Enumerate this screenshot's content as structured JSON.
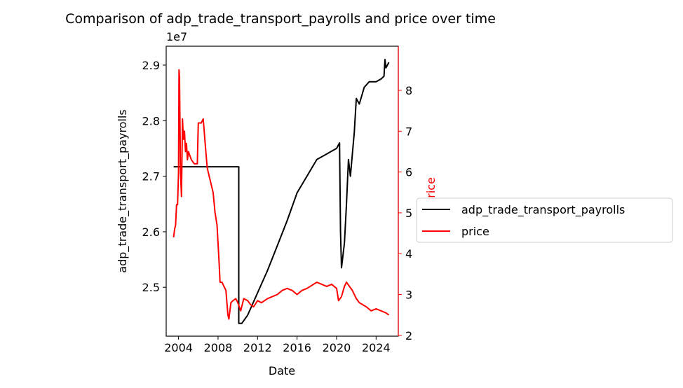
{
  "chart_data": {
    "type": "line",
    "title": "Comparison of adp_trade_transport_payrolls and price over time",
    "xlabel": "Date",
    "ylabel_left": "adp_trade_transport_payrolls",
    "ylabel_right": "price",
    "left_offset_label": "1e7",
    "xlim": [
      2002.75,
      2026.25
    ],
    "ylim_left": [
      2.412,
      2.934
    ],
    "ylim_right": [
      1.98,
      9.08
    ],
    "x_ticks": [
      2004,
      2008,
      2012,
      2016,
      2020,
      2024
    ],
    "x_tick_labels": [
      "2004",
      "2008",
      "2012",
      "2016",
      "2020",
      "2024"
    ],
    "y_left_ticks": [
      2.5,
      2.6,
      2.7,
      2.8,
      2.9
    ],
    "y_left_tick_labels": [
      "2.5",
      "2.6",
      "2.7",
      "2.8",
      "2.9"
    ],
    "y_right_ticks": [
      2,
      3,
      4,
      5,
      6,
      7,
      8
    ],
    "y_right_tick_labels": [
      "2",
      "3",
      "4",
      "5",
      "6",
      "7",
      "8"
    ],
    "legend": {
      "placement": "center-right outside",
      "entries": [
        "adp_trade_transport_payrolls",
        "price"
      ]
    },
    "series": [
      {
        "name": "adp_trade_transport_payrolls",
        "axis": "left",
        "unit_scale": "1e7",
        "color": "#000000",
        "points": [
          [
            2003.5,
            2.717
          ],
          [
            2010.1,
            2.717
          ],
          [
            2010.1,
            2.435
          ],
          [
            2010.4,
            2.435
          ],
          [
            2011.0,
            2.45
          ],
          [
            2012.0,
            2.49
          ],
          [
            2013.0,
            2.53
          ],
          [
            2014.0,
            2.575
          ],
          [
            2015.0,
            2.62
          ],
          [
            2016.0,
            2.67
          ],
          [
            2017.0,
            2.7
          ],
          [
            2018.0,
            2.73
          ],
          [
            2019.0,
            2.74
          ],
          [
            2019.5,
            2.745
          ],
          [
            2020.0,
            2.75
          ],
          [
            2020.3,
            2.76
          ],
          [
            2020.4,
            2.6
          ],
          [
            2020.5,
            2.535
          ],
          [
            2020.8,
            2.58
          ],
          [
            2021.0,
            2.65
          ],
          [
            2021.2,
            2.73
          ],
          [
            2021.4,
            2.7
          ],
          [
            2021.8,
            2.78
          ],
          [
            2022.0,
            2.84
          ],
          [
            2022.3,
            2.83
          ],
          [
            2022.8,
            2.86
          ],
          [
            2023.3,
            2.87
          ],
          [
            2024.0,
            2.87
          ],
          [
            2024.5,
            2.875
          ],
          [
            2024.8,
            2.88
          ],
          [
            2024.9,
            2.91
          ],
          [
            2025.0,
            2.895
          ],
          [
            2025.3,
            2.905
          ]
        ]
      },
      {
        "name": "price",
        "axis": "right",
        "color": "#ff0000",
        "points": [
          [
            2003.5,
            4.4
          ],
          [
            2003.6,
            4.6
          ],
          [
            2003.7,
            4.7
          ],
          [
            2003.8,
            5.2
          ],
          [
            2003.9,
            5.2
          ],
          [
            2004.0,
            6.0
          ],
          [
            2004.05,
            8.5
          ],
          [
            2004.1,
            8.3
          ],
          [
            2004.2,
            6.0
          ],
          [
            2004.3,
            5.4
          ],
          [
            2004.4,
            7.3
          ],
          [
            2004.5,
            6.8
          ],
          [
            2004.6,
            7.0
          ],
          [
            2004.7,
            6.5
          ],
          [
            2004.8,
            6.7
          ],
          [
            2004.9,
            6.3
          ],
          [
            2005.0,
            6.5
          ],
          [
            2005.3,
            6.3
          ],
          [
            2005.6,
            6.2
          ],
          [
            2005.9,
            6.2
          ],
          [
            2006.0,
            7.2
          ],
          [
            2006.3,
            7.2
          ],
          [
            2006.5,
            7.3
          ],
          [
            2006.7,
            6.7
          ],
          [
            2006.9,
            6.1
          ],
          [
            2007.1,
            5.9
          ],
          [
            2007.3,
            5.7
          ],
          [
            2007.5,
            5.5
          ],
          [
            2007.7,
            5.0
          ],
          [
            2007.9,
            4.7
          ],
          [
            2008.1,
            3.8
          ],
          [
            2008.2,
            3.3
          ],
          [
            2008.4,
            3.3
          ],
          [
            2008.6,
            3.2
          ],
          [
            2008.8,
            3.1
          ],
          [
            2009.0,
            2.5
          ],
          [
            2009.1,
            2.4
          ],
          [
            2009.3,
            2.8
          ],
          [
            2009.5,
            2.85
          ],
          [
            2009.8,
            2.9
          ],
          [
            2010.0,
            2.8
          ],
          [
            2010.3,
            2.6
          ],
          [
            2010.6,
            2.9
          ],
          [
            2011.0,
            2.85
          ],
          [
            2011.3,
            2.75
          ],
          [
            2011.6,
            2.7
          ],
          [
            2012.0,
            2.85
          ],
          [
            2012.4,
            2.8
          ],
          [
            2013.0,
            2.9
          ],
          [
            2014.0,
            3.0
          ],
          [
            2014.5,
            3.1
          ],
          [
            2015.0,
            3.15
          ],
          [
            2015.5,
            3.1
          ],
          [
            2016.0,
            3.0
          ],
          [
            2016.5,
            3.1
          ],
          [
            2017.0,
            3.15
          ],
          [
            2018.0,
            3.3
          ],
          [
            2018.5,
            3.25
          ],
          [
            2019.0,
            3.2
          ],
          [
            2019.5,
            3.25
          ],
          [
            2020.0,
            3.15
          ],
          [
            2020.2,
            2.85
          ],
          [
            2020.5,
            2.95
          ],
          [
            2020.8,
            3.2
          ],
          [
            2021.0,
            3.3
          ],
          [
            2021.3,
            3.2
          ],
          [
            2021.6,
            3.1
          ],
          [
            2022.0,
            2.9
          ],
          [
            2022.3,
            2.8
          ],
          [
            2023.0,
            2.7
          ],
          [
            2023.5,
            2.6
          ],
          [
            2024.0,
            2.65
          ],
          [
            2024.5,
            2.6
          ],
          [
            2025.0,
            2.55
          ],
          [
            2025.3,
            2.5
          ]
        ]
      }
    ]
  }
}
